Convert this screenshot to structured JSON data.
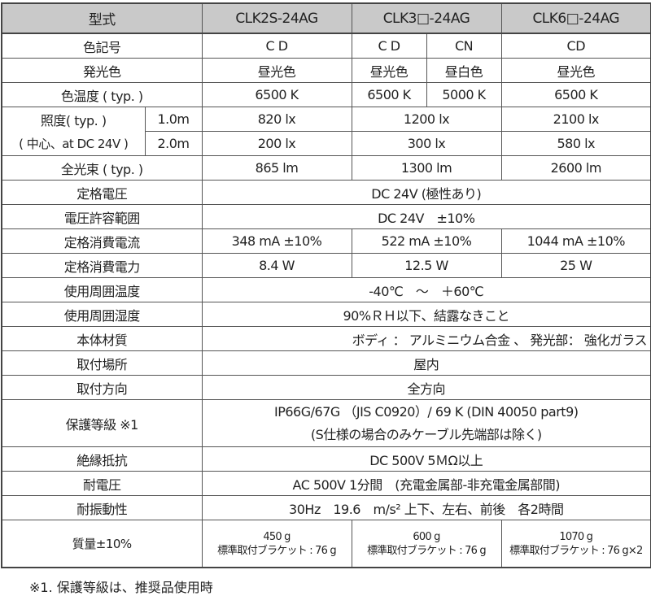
{
  "header": {
    "label": "型式",
    "models": [
      "CLK2S-24AG",
      "CLK3□-24AG",
      "CLK6□-24AG"
    ]
  },
  "rows": {
    "color_code": {
      "label": "色記号",
      "values": [
        "C D",
        "C D",
        "CN",
        "CD"
      ]
    },
    "emission_color": {
      "label": "発光色",
      "values": [
        "昼光色",
        "昼光色",
        "昼白色",
        "昼光色"
      ]
    },
    "color_temp": {
      "label": "色温度 ( typ. )",
      "values": [
        "6500 K",
        "6500 K",
        "5000 K",
        "6500 K"
      ]
    },
    "illuminance": {
      "label_1": "照度( typ. )",
      "label_2": "( 中心、at DC 24V )",
      "dist_1": "1.0m",
      "dist_2": "2.0m",
      "values_1": [
        "820 lx",
        "1200 lx",
        "2100 lx"
      ],
      "values_2": [
        "200 lx",
        "300 lx",
        "580 lx"
      ]
    },
    "luminous_flux": {
      "label": "全光束 ( typ. )",
      "values": [
        "865 lm",
        "1300 lm",
        "2600 lm"
      ]
    },
    "rated_voltage": {
      "label": "定格電圧",
      "value": "DC 24V (極性あり)"
    },
    "voltage_range": {
      "label": "電圧許容範囲",
      "value": "DC 24V　±10%"
    },
    "rated_current": {
      "label": "定格消費電流",
      "values": [
        "348 mA ±10%",
        "522 mA ±10%",
        "1044 mA ±10%"
      ]
    },
    "rated_power": {
      "label": "定格消費電力",
      "values": [
        "8.4 W",
        "12.5 W",
        "25 W"
      ]
    },
    "ambient_temp": {
      "label": "使用周囲温度",
      "value": "-40℃　～　＋60℃"
    },
    "ambient_humidity": {
      "label": "使用周囲湿度",
      "value": "90%ＲＨ以下、結露なきこと"
    },
    "material": {
      "label": "本体材質",
      "value": "ボディ ： アルミニウム合金 、 発光部： 強化ガラス"
    },
    "location": {
      "label": "取付場所",
      "value": "屋内"
    },
    "direction": {
      "label": "取付方向",
      "value": "全方向"
    },
    "protection": {
      "label": "保護等級 ※1",
      "value_1": "IP66G/67G （JIS C0920）/ 69 K (DIN 40050 part9)",
      "value_2": "(S仕様の場合のみケーブル先端部は除く)"
    },
    "insulation": {
      "label": "絶縁抵抗",
      "value": "DC 500V 5ＭΩ以上"
    },
    "withstand_voltage": {
      "label": "耐電圧",
      "value": "AC 500V 1分間　(充電金属部-非充電金属部間)"
    },
    "vibration": {
      "label": "耐振動性",
      "value": "30Hz　19.6　m/s² 上下、左右、前後　各2時間"
    },
    "mass": {
      "label": "質量±10%",
      "weights": [
        "450 g",
        "600 g",
        "1070 g"
      ],
      "brackets": [
        "標準取付ブラケット : 76 g",
        "標準取付ブラケット : 76 g",
        "標準取付ブラケット : 76 g×2"
      ]
    }
  },
  "footnote": "※1. 保護等級は、推奨品使用時"
}
